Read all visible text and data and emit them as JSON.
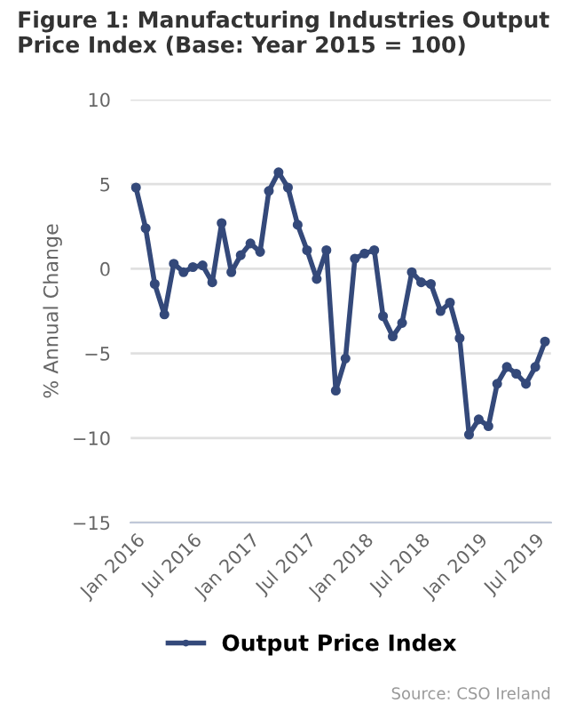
{
  "chart_data": {
    "type": "line",
    "title": "Figure 1: Manufacturing Industries Output Price Index (Base: Year 2015 = 100)",
    "ylabel": "% Annual Change",
    "x": [
      "2016-01",
      "2016-02",
      "2016-03",
      "2016-04",
      "2016-05",
      "2016-06",
      "2016-07",
      "2016-08",
      "2016-09",
      "2016-10",
      "2016-11",
      "2016-12",
      "2017-01",
      "2017-02",
      "2017-03",
      "2017-04",
      "2017-05",
      "2017-06",
      "2017-07",
      "2017-08",
      "2017-09",
      "2017-10",
      "2017-11",
      "2017-12",
      "2018-01",
      "2018-02",
      "2018-03",
      "2018-04",
      "2018-05",
      "2018-06",
      "2018-07",
      "2018-08",
      "2018-09",
      "2018-10",
      "2018-11",
      "2018-12",
      "2019-01",
      "2019-02",
      "2019-03",
      "2019-04",
      "2019-05",
      "2019-06",
      "2019-07",
      "2019-08"
    ],
    "series": [
      {
        "name": "Output Price Index",
        "color": "#34497a",
        "values": [
          4.8,
          2.4,
          -0.9,
          -2.7,
          0.3,
          -0.2,
          0.1,
          0.2,
          -0.8,
          2.7,
          -0.2,
          0.8,
          1.5,
          1.0,
          4.6,
          5.7,
          4.8,
          2.6,
          1.1,
          -0.6,
          1.1,
          -7.2,
          -5.3,
          0.6,
          0.9,
          1.1,
          -2.8,
          -4.0,
          -3.2,
          -0.2,
          -0.8,
          -0.9,
          -2.5,
          -2.0,
          -4.1,
          -9.8,
          -8.9,
          -9.3,
          -6.8,
          -5.8,
          -6.2,
          -6.8,
          -5.8,
          -4.3
        ]
      }
    ],
    "xlim": [
      "2015-12-15",
      "2019-08-20"
    ],
    "xticks": [
      {
        "value": "2016-01",
        "label": "Jan 2016"
      },
      {
        "value": "2016-07",
        "label": "Jul 2016"
      },
      {
        "value": "2017-01",
        "label": "Jan 2017"
      },
      {
        "value": "2017-07",
        "label": "Jul 2017"
      },
      {
        "value": "2018-01",
        "label": "Jan 2018"
      },
      {
        "value": "2018-07",
        "label": "Jul 2018"
      },
      {
        "value": "2019-01",
        "label": "Jan 2019"
      },
      {
        "value": "2019-07",
        "label": "Jul 2019"
      }
    ],
    "ylim": [
      -15,
      10
    ],
    "yticks": [
      -15,
      -10,
      -5,
      0,
      5,
      10
    ],
    "grid": "y",
    "legend": "bottom",
    "marker": "circle",
    "line_style": "solid",
    "annotations": [
      "Source: CSO Ireland"
    ]
  }
}
